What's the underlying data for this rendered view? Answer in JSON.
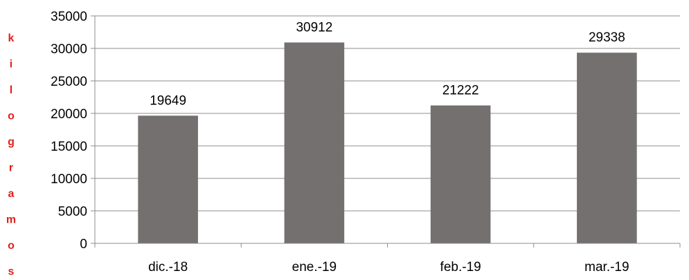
{
  "chart_data": {
    "type": "bar",
    "categories": [
      "dic.-18",
      "ene.-19",
      "feb.-19",
      "mar.-19"
    ],
    "values": [
      19649,
      30912,
      21222,
      29338
    ],
    "data_labels": [
      "19649",
      "30912",
      "21222",
      "29338"
    ],
    "title": "",
    "xlabel": "",
    "ylabel": "kilogramos",
    "ylim": [
      0,
      35000
    ],
    "yticks": [
      "0",
      "5000",
      "10000",
      "15000",
      "20000",
      "25000",
      "30000",
      "35000"
    ],
    "grid": true,
    "legend": "none",
    "colors": {
      "bar": "#747070",
      "grid": "#8c8c8c",
      "ylabel": "#e0211b"
    }
  }
}
